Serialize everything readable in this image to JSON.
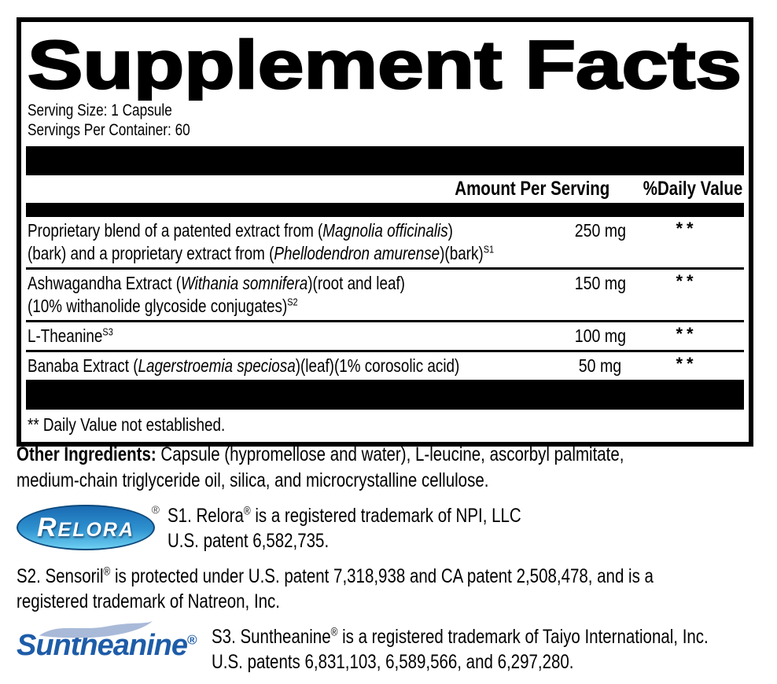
{
  "title": "Supplement Facts",
  "serving": {
    "size": "Serving Size: 1 Capsule",
    "per_container": "Servings Per Container: 60"
  },
  "header": {
    "amount": "Amount Per Serving",
    "daily_value": "%Daily Value"
  },
  "rows": [
    {
      "name_lines": [
        [
          {
            "t": "Proprietary blend of a patented extract from (",
            "s": "n"
          },
          {
            "t": "Magnolia officinalis",
            "s": "i"
          },
          {
            "t": ")",
            "s": "n"
          }
        ],
        [
          {
            "t": "(bark) and a proprietary extract from (",
            "s": "n"
          },
          {
            "t": "Phellodendron amurense",
            "s": "i"
          },
          {
            "t": ")(bark)",
            "s": "n"
          },
          {
            "t": "S1",
            "s": "sup"
          }
        ]
      ],
      "amount": "250 mg",
      "daily_value": "**"
    },
    {
      "name_lines": [
        [
          {
            "t": "Ashwagandha Extract (",
            "s": "n"
          },
          {
            "t": "Withania somnifera",
            "s": "i"
          },
          {
            "t": ")(root and leaf)",
            "s": "n"
          }
        ],
        [
          {
            "t": "(10% withanolide glycoside conjugates)",
            "s": "n"
          },
          {
            "t": "S2",
            "s": "sup"
          }
        ]
      ],
      "amount": "150 mg",
      "daily_value": "**"
    },
    {
      "name_lines": [
        [
          {
            "t": "L-Theanine",
            "s": "n"
          },
          {
            "t": "S3",
            "s": "sup"
          }
        ]
      ],
      "amount": "100 mg",
      "daily_value": "**"
    },
    {
      "name_lines": [
        [
          {
            "t": "Banaba Extract (",
            "s": "n"
          },
          {
            "t": "Lagerstroemia speciosa",
            "s": "i"
          },
          {
            "t": ")(leaf)(1% corosolic acid)",
            "s": "n"
          }
        ]
      ],
      "amount": "50 mg",
      "daily_value": "**"
    }
  ],
  "footnote": "** Daily Value not established.",
  "other_ingredients_lines": [
    [
      {
        "t": "Other Ingredients: ",
        "s": "b"
      },
      {
        "t": "Capsule (hypromellose and water), L-leucine, ascorbyl palmitate,",
        "s": "n"
      }
    ],
    [
      {
        "t": "medium-chain triglyceride oil, silica, and microcrystalline cellulose.",
        "s": "n"
      }
    ]
  ],
  "relora": {
    "logo_text": "RELORA",
    "reg_mark": "®",
    "lines": [
      [
        {
          "t": "S1. Relora",
          "s": "n"
        },
        {
          "t": "®",
          "s": "sup"
        },
        {
          "t": " is a registered trademark of NPI, LLC",
          "s": "n"
        }
      ],
      [
        {
          "t": "U.S. patent 6,582,735.",
          "s": "n"
        }
      ]
    ]
  },
  "sensoril": {
    "lines": [
      [
        {
          "t": "S2. Sensoril",
          "s": "n"
        },
        {
          "t": "®",
          "s": "sup"
        },
        {
          "t": " is protected under U.S. patent 7,318,938 and CA patent 2,508,478, and is a",
          "s": "n"
        }
      ],
      [
        {
          "t": "registered trademark of Natreon, Inc.",
          "s": "n"
        }
      ]
    ]
  },
  "suntheanine": {
    "logo_text": "Suntheanine",
    "reg_mark": "®",
    "lines": [
      [
        {
          "t": "S3. Suntheanine",
          "s": "n"
        },
        {
          "t": "®",
          "s": "sup"
        },
        {
          "t": " is a registered trademark of Taiyo International, Inc.",
          "s": "n"
        }
      ],
      [
        {
          "t": "U.S. patents 6,831,103, 6,589,566, and 6,297,280.",
          "s": "n"
        }
      ]
    ]
  },
  "colors": {
    "relora_gradient_top": "#1a6ab2",
    "relora_gradient_bottom": "#6fd0f2",
    "suntheanine_blue": "#1e5ca8",
    "swoosh_blue": "#a9bad8",
    "bar_black": "#000000"
  }
}
